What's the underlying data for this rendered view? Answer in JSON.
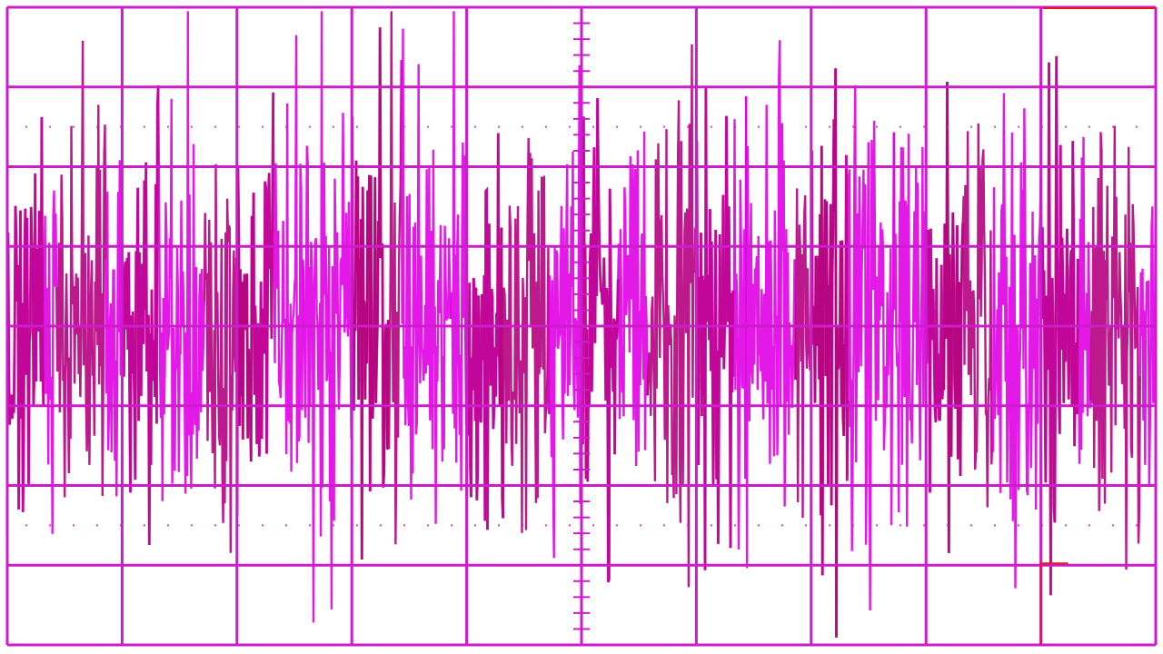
{
  "chart_data": {
    "type": "line",
    "title": "",
    "xlabel": "",
    "ylabel": "",
    "grid": true,
    "grid_divisions": {
      "x": 10,
      "y": 8
    },
    "x_range": [
      0,
      10
    ],
    "y_range": [
      -4,
      4
    ],
    "trace": {
      "kind": "random-noise",
      "mean": 0,
      "typical_peak": 3.5,
      "samples": 1400
    },
    "colors": {
      "trace_primary": "#e000e6",
      "trace_dark": "#b5007f",
      "grid": "#cc1ccc",
      "marker": "#e21a1a",
      "background": "#ffffff"
    }
  }
}
